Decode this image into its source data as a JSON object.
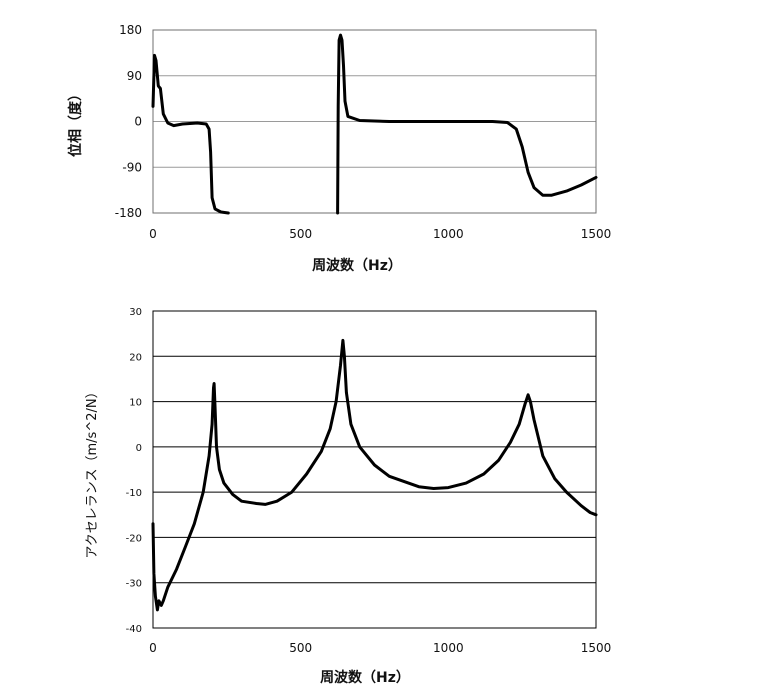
{
  "chart_data": [
    {
      "type": "line",
      "ylabel": "位相（度）",
      "xlabel": "周波数（Hz）",
      "xlim": [
        0,
        1500
      ],
      "ylim": [
        -180,
        180
      ],
      "xticks": [
        "0",
        "500",
        "1000",
        "1500"
      ],
      "yticks": [
        "180",
        "90",
        "0",
        "-90",
        "-180"
      ],
      "grid": true,
      "series": [
        {
          "segments": [
            [
              [
                0,
                30
              ],
              [
                5,
                130
              ],
              [
                10,
                120
              ],
              [
                18,
                70
              ],
              [
                25,
                65
              ],
              [
                35,
                15
              ],
              [
                50,
                -3
              ],
              [
                70,
                -8
              ],
              [
                100,
                -5
              ],
              [
                150,
                -3
              ],
              [
                180,
                -5
              ],
              [
                190,
                -15
              ],
              [
                195,
                -60
              ],
              [
                200,
                -150
              ],
              [
                210,
                -172
              ],
              [
                230,
                -178
              ],
              [
                255,
                -180
              ]
            ],
            [
              [
                625,
                -180
              ],
              [
                627,
                30
              ],
              [
                630,
                160
              ],
              [
                635,
                170
              ],
              [
                640,
                160
              ],
              [
                645,
                110
              ],
              [
                650,
                40
              ],
              [
                660,
                10
              ],
              [
                700,
                2
              ],
              [
                800,
                0
              ],
              [
                1000,
                0
              ],
              [
                1150,
                0
              ],
              [
                1200,
                -2
              ],
              [
                1230,
                -15
              ],
              [
                1250,
                -50
              ],
              [
                1270,
                -100
              ],
              [
                1290,
                -130
              ],
              [
                1320,
                -145
              ],
              [
                1350,
                -145
              ],
              [
                1400,
                -137
              ],
              [
                1450,
                -125
              ],
              [
                1500,
                -110
              ]
            ]
          ]
        }
      ]
    },
    {
      "type": "line",
      "ylabel": "アクセレランス（m/s^2/N）",
      "xlabel": "周波数（Hz）",
      "xlim": [
        0,
        1500
      ],
      "ylim": [
        -40,
        30
      ],
      "xticks": [
        "0",
        "500",
        "1000",
        "1500"
      ],
      "yticks": [
        "30",
        "20",
        "10",
        "0",
        "-10",
        "-20",
        "-30",
        "-40"
      ],
      "grid": true,
      "series": [
        {
          "points": [
            [
              0,
              -17
            ],
            [
              3,
              -28
            ],
            [
              8,
              -33
            ],
            [
              15,
              -36
            ],
            [
              20,
              -34
            ],
            [
              28,
              -35
            ],
            [
              35,
              -34
            ],
            [
              50,
              -31
            ],
            [
              80,
              -27
            ],
            [
              110,
              -22
            ],
            [
              140,
              -17
            ],
            [
              170,
              -10
            ],
            [
              190,
              -2
            ],
            [
              200,
              5
            ],
            [
              205,
              13
            ],
            [
              207,
              14
            ],
            [
              210,
              9
            ],
            [
              215,
              0
            ],
            [
              225,
              -5
            ],
            [
              240,
              -8
            ],
            [
              270,
              -10.5
            ],
            [
              300,
              -12
            ],
            [
              350,
              -12.5
            ],
            [
              380,
              -12.7
            ],
            [
              420,
              -12
            ],
            [
              470,
              -10
            ],
            [
              520,
              -6
            ],
            [
              570,
              -1
            ],
            [
              600,
              4
            ],
            [
              620,
              10
            ],
            [
              635,
              18
            ],
            [
              643,
              23.5
            ],
            [
              648,
              20
            ],
            [
              655,
              12
            ],
            [
              670,
              5
            ],
            [
              700,
              0
            ],
            [
              750,
              -4
            ],
            [
              800,
              -6.5
            ],
            [
              900,
              -8.8
            ],
            [
              950,
              -9.2
            ],
            [
              1000,
              -9
            ],
            [
              1060,
              -8
            ],
            [
              1120,
              -6
            ],
            [
              1170,
              -3
            ],
            [
              1210,
              1
            ],
            [
              1240,
              5
            ],
            [
              1260,
              9.5
            ],
            [
              1270,
              11.5
            ],
            [
              1278,
              10
            ],
            [
              1290,
              6
            ],
            [
              1320,
              -2
            ],
            [
              1360,
              -7
            ],
            [
              1400,
              -10
            ],
            [
              1450,
              -13
            ],
            [
              1480,
              -14.5
            ],
            [
              1500,
              -15
            ]
          ]
        }
      ]
    }
  ]
}
